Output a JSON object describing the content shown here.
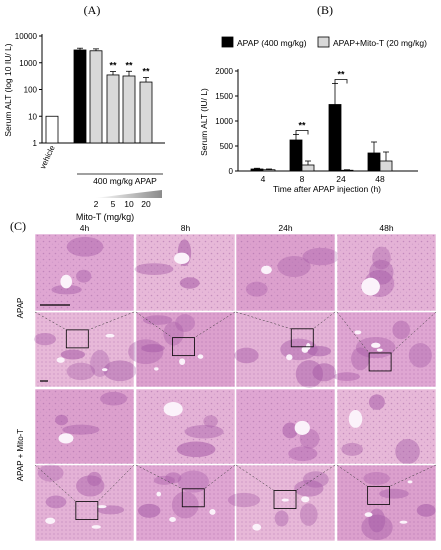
{
  "panel_labels": [
    "(A)",
    "(B)",
    "(C)"
  ],
  "colors": {
    "black_bar": "#000000",
    "gray_bar": "#d9d9d9",
    "white_bar": "#ffffff",
    "tissue_light": "#e7b8d8",
    "tissue_mid": "#c97fbf",
    "tissue_dark": "#9a4fa0",
    "vessel": "#fbf2fa"
  },
  "chart_data": [
    {
      "type": "bar",
      "ylabel": "Serum ALT (log 10 IU/ L)",
      "yscale": "log",
      "ylim": [
        1,
        10000
      ],
      "y_ticks": [
        "1",
        "10",
        "100",
        "1000",
        "10000"
      ],
      "categories": [
        "vehicle",
        "",
        "2",
        "5",
        "10",
        "20"
      ],
      "values": [
        10,
        3000,
        2800,
        350,
        320,
        190
      ],
      "errors": [
        0,
        500,
        500,
        120,
        160,
        90
      ],
      "bar_colors": [
        "#ffffff",
        "#000000",
        "#d9d9d9",
        "#d9d9d9",
        "#d9d9d9",
        "#d9d9d9"
      ],
      "significance": [
        "",
        "",
        "",
        "**",
        "**",
        "**"
      ],
      "group_label": "400 mg/kg APAP",
      "xlabel": "Mito-T (mg/kg)",
      "vehicle_label": "vehicle"
    },
    {
      "type": "bar",
      "ylabel": "Serum ALT (IU/ L)",
      "xlabel": "Time after APAP injection (h)",
      "ylim": [
        0,
        2000
      ],
      "y_ticks": [
        "0",
        "500",
        "1000",
        "1500",
        "2000"
      ],
      "categories": [
        "4",
        "8",
        "24",
        "48"
      ],
      "series": [
        {
          "name": "APAP (400 mg/kg)",
          "values": [
            40,
            620,
            1330,
            360
          ],
          "errors": [
            15,
            110,
            420,
            220
          ],
          "color": "#000000"
        },
        {
          "name": "APAP+Mito-T (20 mg/kg)",
          "values": [
            25,
            120,
            15,
            200
          ],
          "errors": [
            15,
            80,
            10,
            180
          ],
          "color": "#d9d9d9"
        }
      ],
      "significance": [
        {
          "category": "8",
          "text": "**"
        },
        {
          "category": "24",
          "text": "**"
        }
      ],
      "legend": "top"
    }
  ],
  "micrographs": {
    "columns": [
      "4h",
      "8h",
      "24h",
      "48h"
    ],
    "row_groups": [
      "APAP",
      "APAP + Mito-T"
    ]
  }
}
